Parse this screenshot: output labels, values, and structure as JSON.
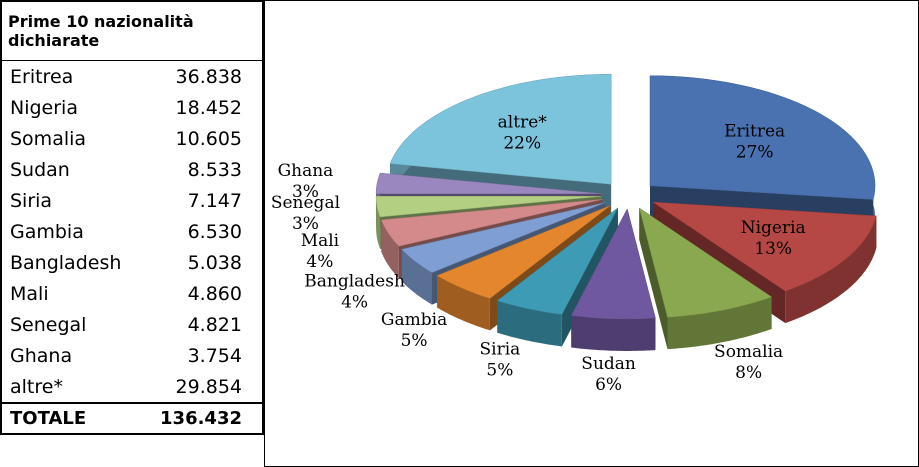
{
  "table": {
    "title": "Prime 10 nazionalità dichiarate",
    "rows": [
      [
        "Eritrea",
        "36.838"
      ],
      [
        "Nigeria",
        "18.452"
      ],
      [
        "Somalia",
        "10.605"
      ],
      [
        "Sudan",
        "8.533"
      ],
      [
        "Siria",
        "7.147"
      ],
      [
        "Gambia",
        "6.530"
      ],
      [
        "Bangladesh",
        "5.038"
      ],
      [
        "Mali",
        "4.860"
      ],
      [
        "Senegal",
        "4.821"
      ],
      [
        "Ghana",
        "3.754"
      ],
      [
        "altre*",
        "29.854"
      ]
    ],
    "total": [
      "TOTALE",
      "136.432"
    ]
  },
  "chart_data": {
    "type": "pie",
    "categories": [
      "Eritrea",
      "Nigeria",
      "Somalia",
      "Sudan",
      "Siria",
      "Gambia",
      "Bangladesh",
      "Mali",
      "Senegal",
      "Ghana",
      "altre*"
    ],
    "values": [
      27,
      13,
      8,
      6,
      5,
      5,
      4,
      4,
      3,
      3,
      22
    ],
    "value_labels": [
      "27%",
      "13%",
      "8%",
      "6%",
      "5%",
      "5%",
      "4%",
      "4%",
      "3%",
      "3%",
      "22%"
    ],
    "colors": [
      "#4a72b0",
      "#b54744",
      "#8aa84f",
      "#7058a0",
      "#3e9bb5",
      "#e3862e",
      "#7f9ed3",
      "#d48a8a",
      "#b3cf82",
      "#9a87c0",
      "#7cc3dc"
    ]
  }
}
